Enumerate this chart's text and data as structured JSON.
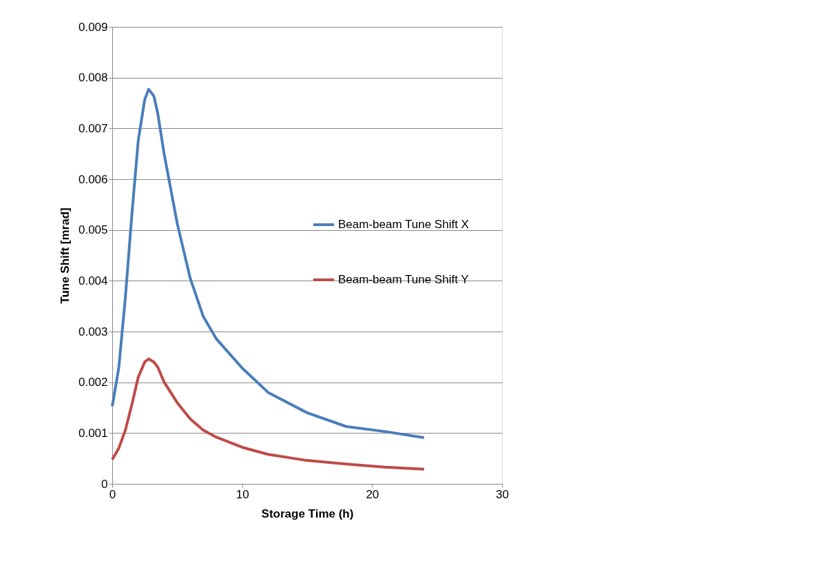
{
  "chart_data": {
    "type": "line",
    "xlabel": "Storage Time (h)",
    "ylabel": "Tune Shift [mrad]",
    "xlim": [
      0,
      30
    ],
    "xticks": [
      0,
      10,
      20,
      30
    ],
    "ylim": [
      0,
      0.009
    ],
    "yticks": [
      0,
      0.001,
      0.002,
      0.003,
      0.004,
      0.005,
      0.006,
      0.007,
      0.008,
      0.009
    ],
    "grid": "y",
    "legend": "right",
    "marker": "none",
    "line_style": "solid",
    "series": [
      {
        "name": "Beam-beam Tune Shift X",
        "color": "#4a7ebb",
        "x": [
          0,
          0.5,
          1,
          1.5,
          2,
          2.5,
          2.8,
          3.2,
          3.5,
          4,
          5,
          6,
          7,
          8,
          10,
          12,
          15,
          18,
          21,
          24
        ],
        "values": [
          0.00153,
          0.00228,
          0.00364,
          0.00527,
          0.00676,
          0.00757,
          0.00777,
          0.00764,
          0.0073,
          0.00649,
          0.00513,
          0.00405,
          0.0033,
          0.00286,
          0.00228,
          0.0018,
          0.0014,
          0.00113,
          0.00103,
          0.00091
        ]
      },
      {
        "name": "Beam-beam Tune Shift Y",
        "color": "#be4b48",
        "x": [
          0,
          0.5,
          1,
          1.5,
          2,
          2.5,
          2.8,
          3.2,
          3.5,
          4,
          5,
          6,
          7,
          8,
          10,
          12,
          15,
          18,
          21,
          24
        ],
        "values": [
          0.00048,
          0.0007,
          0.00105,
          0.00155,
          0.0021,
          0.0024,
          0.00246,
          0.0024,
          0.0023,
          0.002,
          0.0016,
          0.00128,
          0.00106,
          0.00092,
          0.00072,
          0.00058,
          0.00046,
          0.00039,
          0.00033,
          0.00029
        ]
      }
    ]
  }
}
